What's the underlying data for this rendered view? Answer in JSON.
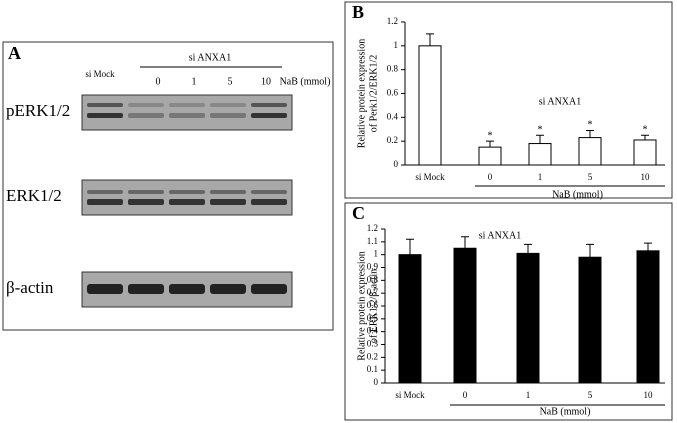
{
  "panel_a": {
    "label": "A",
    "group_label": "si ANXA1",
    "lanes": [
      "si Mock",
      "0",
      "1",
      "5",
      "10"
    ],
    "treatment": "NaB (mmol)",
    "bands": [
      "pERK1/2",
      "ERK1/2",
      "β-actin"
    ]
  },
  "chart_data": [
    {
      "type": "bar",
      "panel": "B",
      "y_label": [
        "Relative protein expression",
        "of Perk1/2/ERK1/2"
      ],
      "annotation": "si ANXA1",
      "x_label": "NaB (mmol)",
      "categories": [
        "si Mock",
        "0",
        "1",
        "5",
        "10"
      ],
      "values": [
        1.0,
        0.15,
        0.18,
        0.23,
        0.21
      ],
      "errors": [
        0.1,
        0.05,
        0.07,
        0.06,
        0.04
      ],
      "significance": [
        null,
        "*",
        "*",
        "*",
        "*"
      ],
      "color": "#ffffff",
      "ylim": [
        0,
        1.2
      ],
      "yticks": [
        0,
        0.2,
        0.4,
        0.6,
        0.8,
        1,
        1.2
      ]
    },
    {
      "type": "bar",
      "panel": "C",
      "y_label": [
        "Relative protein expression",
        "of ERK1/2/β-actin"
      ],
      "annotation": "si ANXA1",
      "x_label": "NaB (mmol)",
      "categories": [
        "si Mock",
        "0",
        "1",
        "5",
        "10"
      ],
      "values": [
        1.0,
        1.05,
        1.01,
        0.98,
        1.03
      ],
      "errors": [
        0.12,
        0.09,
        0.07,
        0.1,
        0.06
      ],
      "color": "#000000",
      "ylim": [
        0,
        1.2
      ],
      "yticks": [
        0,
        0.1,
        0.2,
        0.3,
        0.4,
        0.5,
        0.6,
        0.7,
        0.8,
        0.9,
        1,
        1.1,
        1.2
      ]
    }
  ]
}
